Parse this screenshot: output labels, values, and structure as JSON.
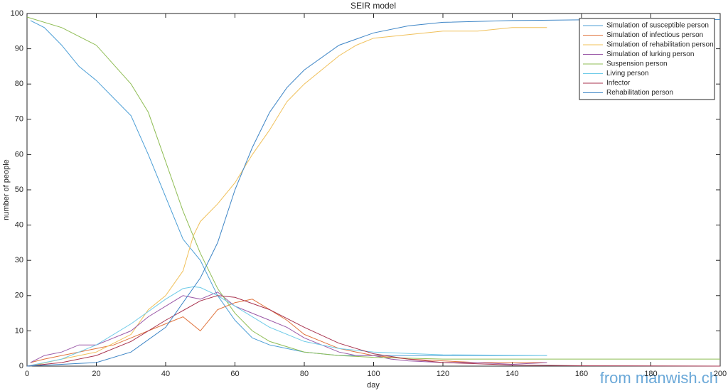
{
  "chart_data": {
    "type": "line",
    "title": "SEIR model",
    "xlabel": "day",
    "ylabel": "number of people",
    "watermark": "from manwish.ch",
    "xlim": [
      0,
      200
    ],
    "xticks": [
      0,
      20,
      40,
      60,
      80,
      100,
      120,
      140,
      160,
      180,
      200
    ],
    "ylim": [
      0,
      100
    ],
    "yticks": [
      0,
      10,
      20,
      30,
      40,
      50,
      60,
      70,
      80,
      90,
      100
    ],
    "legend": "upper right",
    "series": [
      {
        "name": "Simulation of susceptible person",
        "color": "#4d9fd6",
        "x": [
          1,
          5,
          10,
          15,
          20,
          25,
          30,
          35,
          40,
          45,
          50,
          55,
          60,
          65,
          70,
          75,
          80,
          90,
          100,
          110,
          120,
          130,
          140,
          150
        ],
        "values": [
          98,
          96,
          91,
          85,
          81,
          76,
          71,
          60,
          48,
          36,
          30,
          20,
          13,
          8,
          6,
          5,
          4,
          3,
          3,
          3,
          3,
          3,
          3,
          3
        ]
      },
      {
        "name": "Simulation of infectious person",
        "color": "#e0753f",
        "x": [
          1,
          5,
          10,
          15,
          20,
          25,
          30,
          35,
          40,
          45,
          50,
          55,
          60,
          65,
          70,
          75,
          80,
          85,
          90,
          95,
          100,
          110,
          120,
          130,
          140,
          150
        ],
        "values": [
          1,
          2,
          3,
          4,
          5,
          6,
          8,
          10,
          12,
          14,
          10,
          16,
          18,
          19,
          16,
          13,
          9,
          7,
          5,
          4,
          3,
          2,
          1.5,
          1,
          1,
          1
        ]
      },
      {
        "name": "Simulation of rehabilitation person",
        "color": "#f0c05a",
        "x": [
          1,
          10,
          20,
          30,
          35,
          40,
          45,
          48,
          50,
          55,
          60,
          65,
          70,
          75,
          80,
          85,
          90,
          95,
          100,
          110,
          120,
          130,
          140,
          150
        ],
        "values": [
          0,
          2,
          4,
          9,
          16,
          20,
          27,
          37,
          41,
          46,
          52,
          60,
          67,
          75,
          80,
          84,
          88,
          91,
          93,
          94,
          95,
          95,
          96,
          96
        ]
      },
      {
        "name": "Simulation of lurking person",
        "color": "#9b59a8",
        "x": [
          1,
          5,
          10,
          15,
          20,
          25,
          30,
          35,
          40,
          45,
          50,
          55,
          60,
          65,
          70,
          75,
          80,
          85,
          90,
          95,
          100,
          105,
          110,
          120,
          130,
          140,
          150
        ],
        "values": [
          1,
          3,
          4,
          6,
          6,
          8,
          10,
          14,
          17,
          20,
          19,
          21,
          17,
          15,
          13,
          11,
          8,
          6,
          4,
          3,
          3,
          2,
          1.5,
          1,
          1,
          0.5,
          1
        ]
      },
      {
        "name": "Suspension person",
        "color": "#8fbd55",
        "x": [
          0,
          10,
          20,
          30,
          35,
          40,
          45,
          50,
          55,
          60,
          65,
          70,
          80,
          90,
          100,
          120,
          150,
          200
        ],
        "values": [
          99,
          96,
          91,
          80,
          72,
          58,
          44,
          32,
          22,
          15,
          10,
          7,
          4,
          3,
          2.5,
          2,
          2,
          2
        ]
      },
      {
        "name": "Living person",
        "color": "#6fcbe8",
        "x": [
          0,
          10,
          20,
          30,
          40,
          45,
          48,
          50,
          55,
          60,
          65,
          70,
          80,
          90,
          100,
          120,
          150
        ],
        "values": [
          0,
          2,
          6,
          12,
          19,
          22,
          22.5,
          22.3,
          20,
          17,
          14,
          11,
          7,
          5,
          4,
          3.2,
          3
        ]
      },
      {
        "name": "Infector",
        "color": "#a8334f",
        "x": [
          0,
          10,
          20,
          30,
          40,
          50,
          55,
          60,
          70,
          80,
          90,
          100,
          110,
          120,
          140,
          160,
          200
        ],
        "values": [
          0,
          1,
          3,
          7,
          13,
          18.5,
          20,
          19.5,
          16,
          11,
          6.5,
          3.5,
          2,
          1,
          0.3,
          0.1,
          0
        ]
      },
      {
        "name": "Rehabilitation person",
        "color": "#3d85c6",
        "x": [
          0,
          20,
          30,
          40,
          45,
          50,
          55,
          60,
          65,
          70,
          75,
          80,
          90,
          100,
          110,
          120,
          140,
          160,
          200
        ],
        "values": [
          0,
          1,
          4,
          11,
          18,
          25,
          35,
          50,
          62,
          72,
          79,
          84,
          91,
          94.5,
          96.5,
          97.5,
          98,
          98.2,
          98.3
        ]
      }
    ]
  }
}
